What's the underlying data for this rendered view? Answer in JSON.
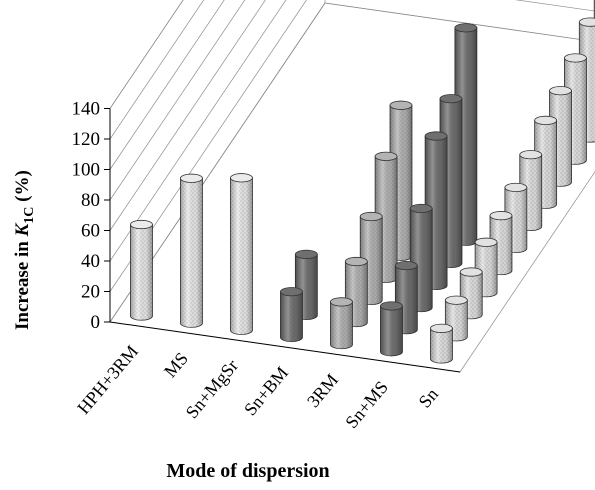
{
  "chart_data": {
    "type": "bar",
    "style": "3d-cylinder-column",
    "title": "",
    "ylabel": "Increase in K1C (%)",
    "ylabel_main": "Increase in ",
    "ylabel_symbol": "K",
    "ylabel_subscript": "1C",
    "ylabel_unit": " (%)",
    "xlabel": "Mode of dispersion",
    "ylim": [
      0,
      140
    ],
    "yticks": [
      "0",
      "20",
      "40",
      "60",
      "80",
      "100",
      "120",
      "140"
    ],
    "grid": true,
    "categories": [
      "HPH+3RM",
      "MS",
      "Sn+MgSr",
      "Sn+BM",
      "3RM",
      "Sn+MS",
      "Sn"
    ],
    "colors": {
      "light": "#ebebeb",
      "medium": "#b4b4b4",
      "dark": "#6f6f6f",
      "sn": "#e2e2e2"
    },
    "groups": [
      {
        "category": "HPH+3RM",
        "color": "light",
        "values": [
          60
        ]
      },
      {
        "category": "MS",
        "color": "light",
        "values": [
          95
        ]
      },
      {
        "category": "Sn+MgSr",
        "color": "light",
        "values": [
          100
        ]
      },
      {
        "category": "Sn+BM",
        "color": "dark",
        "values": [
          30,
          40
        ]
      },
      {
        "category": "3RM",
        "color": "medium",
        "values": [
          28,
          40,
          55,
          80,
          99
        ]
      },
      {
        "category": "Sn+MS",
        "color": "dark",
        "values": [
          30,
          42,
          65,
          98,
          108,
          140
        ]
      },
      {
        "category": "Sn",
        "color": "sn",
        "values": [
          20,
          24,
          28,
          33,
          36,
          40,
          47,
          55,
          60,
          67,
          76,
          85,
          91,
          104
        ]
      }
    ]
  }
}
